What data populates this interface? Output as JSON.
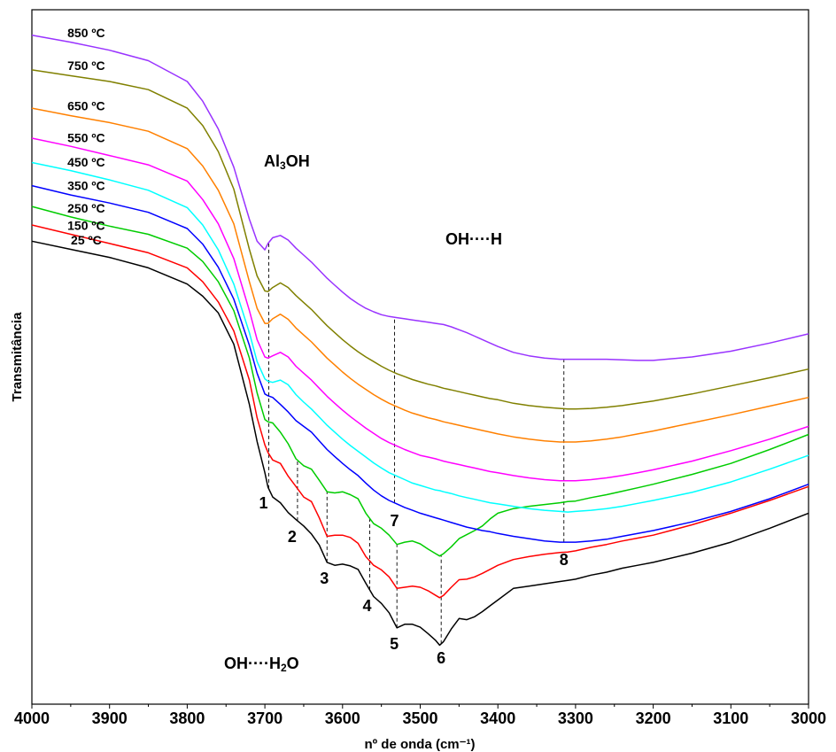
{
  "chart_data": {
    "type": "line",
    "xlabel": "nº de onda (cm⁻¹)",
    "ylabel": "Transmitância",
    "xlim": [
      4000,
      3000
    ],
    "x_ticks": [
      "4000",
      "3900",
      "3800",
      "3700",
      "3600",
      "3500",
      "3400",
      "3300",
      "3200",
      "3100",
      "3000"
    ],
    "x": [
      4000,
      3950,
      3900,
      3850,
      3800,
      3780,
      3760,
      3740,
      3720,
      3710,
      3700,
      3696,
      3690,
      3680,
      3670,
      3660,
      3650,
      3640,
      3630,
      3620,
      3610,
      3600,
      3590,
      3580,
      3570,
      3560,
      3550,
      3540,
      3530,
      3520,
      3510,
      3500,
      3490,
      3480,
      3475,
      3470,
      3460,
      3450,
      3440,
      3430,
      3420,
      3410,
      3400,
      3380,
      3360,
      3340,
      3320,
      3310,
      3300,
      3280,
      3260,
      3240,
      3220,
      3200,
      3150,
      3100,
      3050,
      3000
    ],
    "series": [
      {
        "name": "25 °C",
        "color": "#000000",
        "values": [
          8.0,
          7.86,
          7.72,
          7.54,
          7.26,
          7.05,
          6.76,
          6.22,
          5.18,
          4.54,
          4.0,
          3.75,
          3.58,
          3.48,
          3.31,
          3.19,
          3.08,
          2.94,
          2.75,
          2.45,
          2.4,
          2.42,
          2.39,
          2.33,
          2.09,
          1.86,
          1.74,
          1.58,
          1.32,
          1.38,
          1.38,
          1.33,
          1.22,
          1.1,
          1.02,
          1.08,
          1.3,
          1.48,
          1.46,
          1.51,
          1.6,
          1.7,
          1.8,
          2.0,
          2.04,
          2.08,
          2.12,
          2.14,
          2.16,
          2.23,
          2.28,
          2.35,
          2.4,
          2.45,
          2.61,
          2.8,
          3.04,
          3.3
        ]
      },
      {
        "name": "150 °C",
        "color": "#ff0000",
        "values": [
          8.28,
          8.12,
          7.96,
          7.8,
          7.54,
          7.3,
          6.95,
          6.45,
          5.6,
          4.95,
          4.48,
          4.35,
          4.22,
          4.16,
          3.94,
          3.76,
          3.58,
          3.5,
          3.22,
          2.9,
          2.92,
          2.92,
          2.88,
          2.78,
          2.55,
          2.4,
          2.32,
          2.2,
          2.0,
          2.02,
          2.04,
          2.02,
          1.96,
          1.88,
          1.84,
          1.88,
          2.02,
          2.15,
          2.16,
          2.2,
          2.26,
          2.33,
          2.4,
          2.5,
          2.55,
          2.59,
          2.62,
          2.63,
          2.65,
          2.71,
          2.76,
          2.82,
          2.87,
          2.92,
          3.1,
          3.3,
          3.52,
          3.76
        ]
      },
      {
        "name": "250 °C",
        "color": "#00cc00",
        "values": [
          8.6,
          8.42,
          8.26,
          8.12,
          7.88,
          7.65,
          7.3,
          6.8,
          5.98,
          5.38,
          4.92,
          4.88,
          4.86,
          4.7,
          4.5,
          4.24,
          4.12,
          4.06,
          3.87,
          3.67,
          3.65,
          3.67,
          3.62,
          3.55,
          3.3,
          3.12,
          3.04,
          2.92,
          2.76,
          2.8,
          2.82,
          2.77,
          2.68,
          2.6,
          2.56,
          2.6,
          2.72,
          2.86,
          2.93,
          3.0,
          3.08,
          3.2,
          3.3,
          3.38,
          3.42,
          3.45,
          3.48,
          3.5,
          3.51,
          3.57,
          3.62,
          3.68,
          3.74,
          3.8,
          3.97,
          4.16,
          4.4,
          4.66
        ]
      },
      {
        "name": "350 °C",
        "color": "#0000ff",
        "values": [
          8.96,
          8.8,
          8.66,
          8.5,
          8.22,
          7.95,
          7.55,
          7.0,
          6.2,
          5.72,
          5.36,
          5.33,
          5.3,
          5.18,
          5.05,
          4.9,
          4.8,
          4.7,
          4.55,
          4.4,
          4.28,
          4.16,
          4.05,
          3.95,
          3.82,
          3.7,
          3.6,
          3.52,
          3.46,
          3.4,
          3.35,
          3.3,
          3.26,
          3.22,
          3.2,
          3.18,
          3.14,
          3.1,
          3.06,
          3.03,
          3.0,
          2.98,
          2.95,
          2.9,
          2.86,
          2.82,
          2.8,
          2.8,
          2.8,
          2.82,
          2.85,
          2.9,
          2.95,
          3.0,
          3.15,
          3.33,
          3.55,
          3.8
        ]
      },
      {
        "name": "450 °C",
        "color": "#00ffff",
        "values": [
          9.36,
          9.22,
          9.06,
          8.88,
          8.58,
          8.28,
          7.85,
          7.26,
          6.42,
          5.92,
          5.62,
          5.58,
          5.56,
          5.6,
          5.52,
          5.35,
          5.22,
          5.1,
          4.96,
          4.82,
          4.7,
          4.58,
          4.47,
          4.37,
          4.27,
          4.17,
          4.08,
          4.0,
          3.94,
          3.88,
          3.82,
          3.78,
          3.74,
          3.7,
          3.69,
          3.67,
          3.64,
          3.6,
          3.57,
          3.54,
          3.51,
          3.48,
          3.46,
          3.42,
          3.38,
          3.35,
          3.33,
          3.32,
          3.33,
          3.35,
          3.38,
          3.42,
          3.47,
          3.52,
          3.66,
          3.84,
          4.06,
          4.3
        ]
      },
      {
        "name": "550 °C",
        "color": "#ff00ff",
        "values": [
          9.78,
          9.64,
          9.48,
          9.32,
          9.04,
          8.72,
          8.3,
          7.7,
          6.8,
          6.3,
          6.0,
          5.98,
          6.02,
          6.08,
          6.0,
          5.84,
          5.72,
          5.6,
          5.46,
          5.32,
          5.2,
          5.08,
          4.97,
          4.87,
          4.77,
          4.68,
          4.59,
          4.52,
          4.46,
          4.4,
          4.35,
          4.3,
          4.27,
          4.24,
          4.22,
          4.2,
          4.17,
          4.14,
          4.11,
          4.08,
          4.05,
          4.02,
          4.0,
          3.95,
          3.91,
          3.88,
          3.86,
          3.86,
          3.86,
          3.88,
          3.91,
          3.95,
          4.0,
          4.05,
          4.2,
          4.38,
          4.58,
          4.8
        ]
      },
      {
        "name": "650 °C",
        "color": "#ff8000",
        "values": [
          10.3,
          10.17,
          10.05,
          9.9,
          9.6,
          9.3,
          8.88,
          8.3,
          7.3,
          6.84,
          6.58,
          6.58,
          6.66,
          6.74,
          6.65,
          6.5,
          6.38,
          6.26,
          6.12,
          5.98,
          5.86,
          5.74,
          5.63,
          5.53,
          5.44,
          5.35,
          5.27,
          5.2,
          5.14,
          5.08,
          5.03,
          4.99,
          4.95,
          4.92,
          4.9,
          4.88,
          4.85,
          4.82,
          4.79,
          4.76,
          4.73,
          4.7,
          4.67,
          4.62,
          4.58,
          4.55,
          4.53,
          4.53,
          4.53,
          4.55,
          4.58,
          4.62,
          4.67,
          4.72,
          4.86,
          5.0,
          5.15,
          5.3
        ]
      },
      {
        "name": "750 °C",
        "color": "#808000",
        "values": [
          10.96,
          10.86,
          10.76,
          10.62,
          10.3,
          10.0,
          9.55,
          8.9,
          7.86,
          7.4,
          7.14,
          7.13,
          7.2,
          7.28,
          7.2,
          7.06,
          6.94,
          6.82,
          6.68,
          6.54,
          6.42,
          6.3,
          6.19,
          6.09,
          6.0,
          5.92,
          5.84,
          5.77,
          5.71,
          5.66,
          5.61,
          5.57,
          5.53,
          5.5,
          5.48,
          5.46,
          5.43,
          5.4,
          5.37,
          5.34,
          5.31,
          5.28,
          5.26,
          5.2,
          5.16,
          5.13,
          5.11,
          5.1,
          5.1,
          5.11,
          5.13,
          5.16,
          5.2,
          5.24,
          5.36,
          5.5,
          5.64,
          5.79
        ]
      },
      {
        "name": "850 °C",
        "color": "#9933ff",
        "values": [
          11.56,
          11.44,
          11.3,
          11.12,
          10.76,
          10.42,
          9.94,
          9.28,
          8.38,
          8.0,
          7.85,
          7.96,
          8.06,
          8.1,
          8.02,
          7.88,
          7.76,
          7.64,
          7.5,
          7.36,
          7.24,
          7.12,
          7.01,
          6.92,
          6.84,
          6.78,
          6.73,
          6.7,
          6.68,
          6.66,
          6.64,
          6.62,
          6.6,
          6.58,
          6.57,
          6.56,
          6.52,
          6.47,
          6.42,
          6.36,
          6.3,
          6.24,
          6.18,
          6.08,
          6.02,
          5.98,
          5.96,
          5.96,
          5.96,
          5.96,
          5.96,
          5.95,
          5.94,
          5.94,
          6.0,
          6.1,
          6.24,
          6.4
        ]
      }
    ],
    "annotations": {
      "Al3OH": {
        "prefix": "Al",
        "sub": "3",
        "suffix": "OH"
      },
      "OH_H": "OH····H",
      "OH_H2O": {
        "prefix": "OH····H",
        "sub": "2",
        "suffix": "O"
      }
    },
    "markers": [
      {
        "num": "1",
        "x": 3695
      },
      {
        "num": "2",
        "x": 3658
      },
      {
        "num": "3",
        "x": 3620
      },
      {
        "num": "4",
        "x": 3565
      },
      {
        "num": "5",
        "x": 3530
      },
      {
        "num": "6",
        "x": 3473
      },
      {
        "num": "7",
        "x": 3533
      },
      {
        "num": "8",
        "x": 3315
      }
    ]
  }
}
